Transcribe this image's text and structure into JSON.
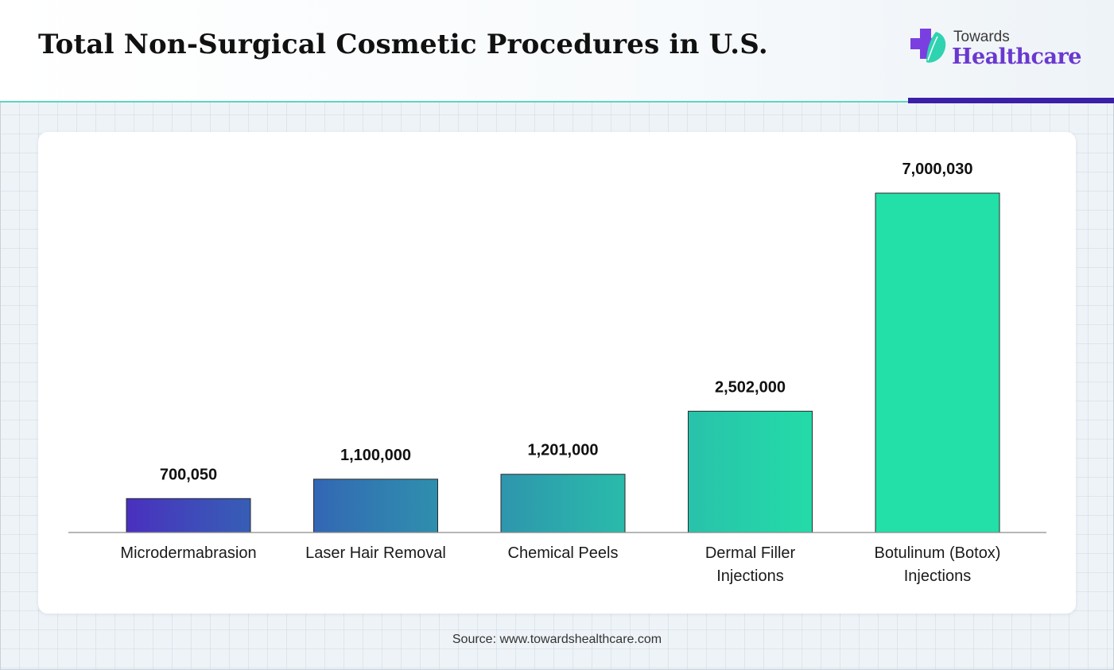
{
  "header": {
    "title": "Total Non-Surgical Cosmetic Procedures in U.S."
  },
  "logo": {
    "line1": "Towards",
    "line2": "Healthcare",
    "icon": "medical-cross-leaf-icon",
    "colors": {
      "cross": "#7a3fe0",
      "leaf": "#2fd3b0",
      "text_accent": "#6a38d0"
    }
  },
  "chart_data": {
    "type": "bar",
    "categories": [
      [
        "Microdermabrasion"
      ],
      [
        "Laser Hair Removal"
      ],
      [
        "Chemical Peels"
      ],
      [
        "Dermal Filler",
        "Injections"
      ],
      [
        "Botulinum (Botox)",
        "Injections"
      ]
    ],
    "values": [
      700050,
      1100000,
      1201000,
      2502000,
      7000030
    ],
    "value_labels": [
      "700,050",
      "1,100,000",
      "1,201,000",
      "2,502,000",
      "7,000,030"
    ],
    "ylim": [
      0,
      7000030
    ],
    "grid": false,
    "legend": "none",
    "colors": [
      "#4a2fbf",
      "#3366b4",
      "#2e95ad",
      "#29c1aa",
      "#22e0a8"
    ]
  },
  "source": "Source: www.towardshealthcare.com"
}
